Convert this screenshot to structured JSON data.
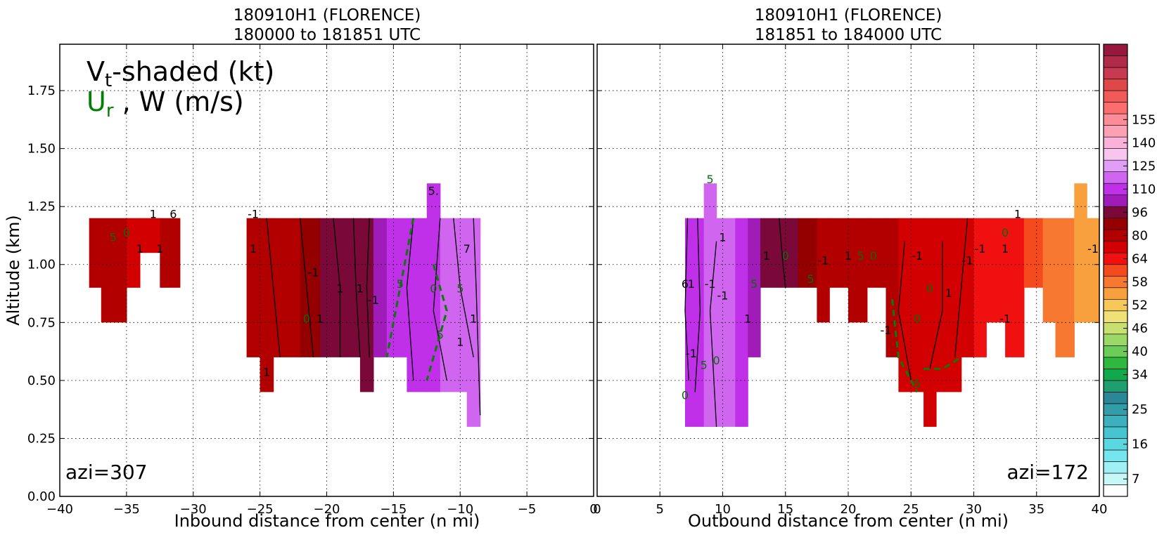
{
  "chart_data": [
    {
      "type": "heatmap",
      "title": [
        "180910H1 (FLORENCE)",
        "180000 to 181851 UTC"
      ],
      "xlabel": "Inbound distance from center (n mi)",
      "ylabel": "Altitude (km)",
      "xlim": [
        -40,
        0
      ],
      "ylim": [
        0.0,
        1.95
      ],
      "xticks": [
        "−40",
        "−35",
        "−30",
        "−25",
        "−20",
        "−15",
        "−10",
        "−5",
        "0"
      ],
      "xtick_values": [
        -40,
        -35,
        -30,
        -25,
        -20,
        -15,
        -10,
        -5,
        0
      ],
      "yticks": [
        "0.00",
        "0.25",
        "0.50",
        "0.75",
        "1.00",
        "1.25",
        "1.50",
        "1.75"
      ],
      "ytick_values": [
        0.0,
        0.25,
        0.5,
        0.75,
        1.0,
        1.25,
        1.5,
        1.75
      ],
      "grid": true,
      "azimuth_label": "azi=307",
      "legend_lines": [
        "V",
        "t",
        "-shaded (kt)",
        "U",
        "r",
        " , W (m/s)"
      ],
      "vt_columns": [
        {
          "x0": -37.8,
          "x1": -36.9,
          "y0": 0.9,
          "y1": 1.2,
          "v": 82
        },
        {
          "x0": -36.9,
          "x1": -35.0,
          "y0": 0.75,
          "y1": 1.2,
          "v": 80
        },
        {
          "x0": -35.0,
          "x1": -34.0,
          "y0": 0.9,
          "y1": 1.2,
          "v": 78
        },
        {
          "x0": -34.0,
          "x1": -32.5,
          "y0": 1.05,
          "y1": 1.2,
          "v": 78
        },
        {
          "x0": -32.5,
          "x1": -31.0,
          "y0": 0.9,
          "y1": 1.2,
          "v": 80
        },
        {
          "x0": -26.0,
          "x1": -25.0,
          "y0": 0.6,
          "y1": 1.2,
          "v": 86
        },
        {
          "x0": -25.0,
          "x1": -24.0,
          "y0": 0.45,
          "y1": 1.2,
          "v": 80
        },
        {
          "x0": -24.0,
          "x1": -22.0,
          "y0": 0.6,
          "y1": 1.2,
          "v": 86
        },
        {
          "x0": -22.0,
          "x1": -20.5,
          "y0": 0.6,
          "y1": 1.2,
          "v": 90
        },
        {
          "x0": -20.5,
          "x1": -18.5,
          "y0": 0.6,
          "y1": 1.2,
          "v": 96
        },
        {
          "x0": -18.5,
          "x1": -17.5,
          "y0": 0.6,
          "y1": 1.2,
          "v": 100
        },
        {
          "x0": -17.5,
          "x1": -16.5,
          "y0": 0.45,
          "y1": 1.2,
          "v": 100
        },
        {
          "x0": -16.5,
          "x1": -15.5,
          "y0": 0.6,
          "y1": 1.2,
          "v": 105
        },
        {
          "x0": -15.5,
          "x1": -14.0,
          "y0": 0.6,
          "y1": 1.2,
          "v": 110
        },
        {
          "x0": -14.0,
          "x1": -12.5,
          "y0": 0.45,
          "y1": 1.2,
          "v": 112
        },
        {
          "x0": -12.5,
          "x1": -11.5,
          "y0": 0.45,
          "y1": 1.35,
          "v": 115
        },
        {
          "x0": -11.5,
          "x1": -9.5,
          "y0": 0.45,
          "y1": 1.2,
          "v": 118
        },
        {
          "x0": -9.5,
          "x1": -8.5,
          "y0": 0.3,
          "y1": 1.2,
          "v": 118
        }
      ],
      "contours_black": [
        [
          [
            -24.5,
            1.2
          ],
          [
            -24.0,
            0.9
          ],
          [
            -23.5,
            0.6
          ]
        ],
        [
          [
            -22.0,
            1.2
          ],
          [
            -21.5,
            0.9
          ],
          [
            -21.0,
            0.6
          ]
        ],
        [
          [
            -19.5,
            1.2
          ],
          [
            -19.0,
            0.9
          ],
          [
            -19.0,
            0.6
          ]
        ],
        [
          [
            -18.0,
            1.2
          ],
          [
            -17.8,
            0.9
          ],
          [
            -17.5,
            0.6
          ]
        ],
        [
          [
            -16.8,
            1.2
          ],
          [
            -17.0,
            0.9
          ],
          [
            -16.8,
            0.6
          ]
        ],
        [
          [
            -13.5,
            1.2
          ],
          [
            -14.0,
            0.9
          ],
          [
            -13.5,
            0.5
          ]
        ],
        [
          [
            -11.5,
            1.2
          ],
          [
            -12.0,
            0.8
          ],
          [
            -11.0,
            0.5
          ]
        ],
        [
          [
            -10.5,
            1.2
          ],
          [
            -10.0,
            0.9
          ],
          [
            -9.0,
            0.6
          ]
        ],
        [
          [
            -9.0,
            1.2
          ],
          [
            -8.8,
            0.9
          ],
          [
            -8.5,
            0.35
          ]
        ]
      ],
      "contours_green_dashed": [
        [
          [
            -13.5,
            1.2
          ],
          [
            -14.5,
            0.9
          ],
          [
            -15.5,
            0.6
          ]
        ],
        [
          [
            -12.0,
            1.0
          ],
          [
            -11.0,
            0.8
          ],
          [
            -12.5,
            0.5
          ]
        ]
      ],
      "contour_labels": [
        {
          "x": -36.0,
          "y": 1.1,
          "t": "5"
        },
        {
          "x": -35.0,
          "y": 1.12,
          "t": "0"
        },
        {
          "x": -34.0,
          "y": 1.05,
          "t": "1"
        },
        {
          "x": -32.5,
          "y": 1.05,
          "t": "1"
        },
        {
          "x": -33.0,
          "y": 1.2,
          "t": "1"
        },
        {
          "x": -31.5,
          "y": 1.2,
          "t": "6"
        },
        {
          "x": -25.5,
          "y": 1.2,
          "t": "-1"
        },
        {
          "x": -25.5,
          "y": 1.05,
          "t": "1"
        },
        {
          "x": -21.0,
          "y": 0.95,
          "t": "-1"
        },
        {
          "x": -21.5,
          "y": 0.75,
          "t": "0"
        },
        {
          "x": -20.5,
          "y": 0.75,
          "t": "1"
        },
        {
          "x": -19.0,
          "y": 0.88,
          "t": "1"
        },
        {
          "x": -17.5,
          "y": 0.88,
          "t": "1"
        },
        {
          "x": -16.5,
          "y": 0.83,
          "t": "-1"
        },
        {
          "x": -24.5,
          "y": 0.52,
          "t": "1"
        },
        {
          "x": -14.5,
          "y": 0.9,
          "t": "5"
        },
        {
          "x": -12.0,
          "y": 0.88,
          "t": "0"
        },
        {
          "x": -10.0,
          "y": 0.88,
          "t": "5"
        },
        {
          "x": -11.5,
          "y": 0.68,
          "t": "5"
        },
        {
          "x": -12.0,
          "y": 1.3,
          "t": "5."
        },
        {
          "x": -9.5,
          "y": 1.05,
          "t": "7"
        },
        {
          "x": -9.0,
          "y": 0.75,
          "t": "1"
        },
        {
          "x": -10.0,
          "y": 0.65,
          "t": "1"
        }
      ]
    },
    {
      "type": "heatmap",
      "title": [
        "180910H1 (FLORENCE)",
        "181851 to 184000 UTC"
      ],
      "xlabel": "Outbound distance from center (n mi)",
      "ylabel": "",
      "xlim": [
        0,
        40
      ],
      "ylim": [
        0.0,
        1.95
      ],
      "xticks": [
        "0",
        "5",
        "10",
        "15",
        "20",
        "25",
        "30",
        "35",
        "40"
      ],
      "xtick_values": [
        0,
        5,
        10,
        15,
        20,
        25,
        30,
        35,
        40
      ],
      "yticks": [],
      "ytick_values": [
        0.0,
        0.25,
        0.5,
        0.75,
        1.0,
        1.25,
        1.5,
        1.75
      ],
      "grid": true,
      "azimuth_label": "azi=172",
      "vt_columns": [
        {
          "x0": 7.0,
          "x1": 8.5,
          "y0": 0.3,
          "y1": 1.2,
          "v": 115
        },
        {
          "x0": 8.5,
          "x1": 9.5,
          "y0": 0.3,
          "y1": 1.35,
          "v": 118
        },
        {
          "x0": 9.5,
          "x1": 11.0,
          "y0": 0.3,
          "y1": 1.2,
          "v": 120
        },
        {
          "x0": 11.0,
          "x1": 12.0,
          "y0": 0.3,
          "y1": 1.2,
          "v": 112
        },
        {
          "x0": 12.0,
          "x1": 13.0,
          "y0": 0.6,
          "y1": 1.2,
          "v": 108
        },
        {
          "x0": 13.0,
          "x1": 14.0,
          "y0": 0.9,
          "y1": 1.2,
          "v": 100
        },
        {
          "x0": 14.0,
          "x1": 16.0,
          "y0": 0.9,
          "y1": 1.2,
          "v": 96
        },
        {
          "x0": 16.0,
          "x1": 17.5,
          "y0": 0.9,
          "y1": 1.2,
          "v": 90
        },
        {
          "x0": 17.5,
          "x1": 18.5,
          "y0": 0.75,
          "y1": 1.2,
          "v": 86
        },
        {
          "x0": 18.5,
          "x1": 20.0,
          "y0": 0.9,
          "y1": 1.2,
          "v": 82
        },
        {
          "x0": 20.0,
          "x1": 21.5,
          "y0": 0.75,
          "y1": 1.2,
          "v": 80
        },
        {
          "x0": 21.5,
          "x1": 23.0,
          "y0": 0.9,
          "y1": 1.2,
          "v": 80
        },
        {
          "x0": 23.0,
          "x1": 24.0,
          "y0": 0.6,
          "y1": 1.2,
          "v": 80
        },
        {
          "x0": 24.0,
          "x1": 26.0,
          "y0": 0.45,
          "y1": 1.2,
          "v": 78
        },
        {
          "x0": 26.0,
          "x1": 27.0,
          "y0": 0.3,
          "y1": 1.2,
          "v": 78
        },
        {
          "x0": 27.0,
          "x1": 29.0,
          "y0": 0.45,
          "y1": 1.2,
          "v": 76
        },
        {
          "x0": 29.0,
          "x1": 30.0,
          "y0": 0.6,
          "y1": 1.2,
          "v": 76
        },
        {
          "x0": 30.0,
          "x1": 31.0,
          "y0": 0.6,
          "y1": 1.2,
          "v": 70
        },
        {
          "x0": 31.0,
          "x1": 32.5,
          "y0": 0.75,
          "y1": 1.2,
          "v": 68
        },
        {
          "x0": 32.5,
          "x1": 34.0,
          "y0": 0.6,
          "y1": 1.2,
          "v": 64
        },
        {
          "x0": 34.0,
          "x1": 35.5,
          "y0": 0.9,
          "y1": 1.2,
          "v": 62
        },
        {
          "x0": 35.5,
          "x1": 36.5,
          "y0": 0.75,
          "y1": 1.2,
          "v": 60
        },
        {
          "x0": 36.5,
          "x1": 38.0,
          "y0": 0.6,
          "y1": 1.2,
          "v": 58
        },
        {
          "x0": 38.0,
          "x1": 39.0,
          "y0": 0.75,
          "y1": 1.35,
          "v": 56
        },
        {
          "x0": 39.0,
          "x1": 40.0,
          "y0": 0.75,
          "y1": 1.2,
          "v": 56
        }
      ],
      "contours_black": [
        [
          [
            7.2,
            1.2
          ],
          [
            7.0,
            0.8
          ],
          [
            7.3,
            0.5
          ]
        ],
        [
          [
            8.0,
            1.2
          ],
          [
            8.2,
            0.8
          ],
          [
            7.8,
            0.45
          ]
        ],
        [
          [
            9.5,
            1.1
          ],
          [
            9.0,
            0.8
          ],
          [
            9.5,
            0.3
          ]
        ],
        [
          [
            14.5,
            1.2
          ],
          [
            14.8,
            1.0
          ],
          [
            15.0,
            0.9
          ]
        ],
        [
          [
            24.5,
            1.1
          ],
          [
            24.0,
            0.8
          ],
          [
            25.0,
            0.5
          ]
        ],
        [
          [
            27.5,
            1.1
          ],
          [
            27.5,
            0.8
          ],
          [
            26.5,
            0.55
          ]
        ],
        [
          [
            29.5,
            1.2
          ],
          [
            29.0,
            0.9
          ],
          [
            28.5,
            0.6
          ]
        ]
      ],
      "contours_green_dashed": [
        [
          [
            23.5,
            0.85
          ],
          [
            24.0,
            0.6
          ],
          [
            25.5,
            0.45
          ]
        ],
        [
          [
            26.0,
            0.55
          ],
          [
            27.5,
            0.55
          ],
          [
            29.0,
            0.6
          ]
        ]
      ],
      "contour_labels": [
        {
          "x": 9.0,
          "y": 1.35,
          "t": "5"
        },
        {
          "x": 7.0,
          "y": 0.9,
          "t": "6"
        },
        {
          "x": 7.5,
          "y": 0.9,
          "t": "1"
        },
        {
          "x": 9.0,
          "y": 0.9,
          "t": "-1"
        },
        {
          "x": 10.0,
          "y": 0.85,
          "t": "-1"
        },
        {
          "x": 10.0,
          "y": 1.1,
          "t": "1"
        },
        {
          "x": 12.0,
          "y": 0.75,
          "t": "1"
        },
        {
          "x": 12.5,
          "y": 0.9,
          "t": "5"
        },
        {
          "x": 7.5,
          "y": 0.6,
          "t": "-1"
        },
        {
          "x": 8.5,
          "y": 0.55,
          "t": "5"
        },
        {
          "x": 9.5,
          "y": 0.57,
          "t": "0"
        },
        {
          "x": 7.0,
          "y": 0.42,
          "t": "0"
        },
        {
          "x": 13.5,
          "y": 1.02,
          "t": "1"
        },
        {
          "x": 15.0,
          "y": 1.02,
          "t": "0"
        },
        {
          "x": 18.0,
          "y": 1.0,
          "t": "-1"
        },
        {
          "x": 17.0,
          "y": 0.92,
          "t": "5"
        },
        {
          "x": 20.0,
          "y": 1.02,
          "t": "1"
        },
        {
          "x": 21.0,
          "y": 1.02,
          "t": "5"
        },
        {
          "x": 22.0,
          "y": 1.02,
          "t": "0"
        },
        {
          "x": 25.5,
          "y": 1.02,
          "t": "-1"
        },
        {
          "x": 23.0,
          "y": 0.7,
          "t": "-1"
        },
        {
          "x": 25.5,
          "y": 0.75,
          "t": "0"
        },
        {
          "x": 26.5,
          "y": 0.88,
          "t": "0"
        },
        {
          "x": 28.0,
          "y": 0.86,
          "t": "1"
        },
        {
          "x": 29.5,
          "y": 1.0,
          "t": "-1"
        },
        {
          "x": 30.5,
          "y": 1.05,
          "t": "-1"
        },
        {
          "x": 32.5,
          "y": 1.05,
          "t": "1"
        },
        {
          "x": 32.5,
          "y": 1.12,
          "t": "0"
        },
        {
          "x": 33.5,
          "y": 1.2,
          "t": "1"
        },
        {
          "x": 32.5,
          "y": 0.75,
          "t": "-1"
        },
        {
          "x": 39.5,
          "y": 1.05,
          "t": "-1"
        },
        {
          "x": 25.5,
          "y": 0.47,
          "t": "5"
        }
      ]
    }
  ],
  "colorbar": {
    "tick_labels": [
      "7",
      "16",
      "25",
      "34",
      "40",
      "46",
      "52",
      "58",
      "64",
      "80",
      "96",
      "110",
      "125",
      "140",
      "155"
    ],
    "tick_values": [
      7,
      16,
      25,
      34,
      40,
      46,
      52,
      58,
      64,
      80,
      96,
      110,
      125,
      140,
      155
    ],
    "levels": [
      4,
      7,
      10,
      13,
      16,
      19,
      22,
      25,
      28,
      31,
      34,
      37,
      40,
      43,
      46,
      49,
      52,
      55,
      58,
      61,
      64,
      72,
      80,
      88,
      96,
      103,
      110,
      118,
      125,
      133,
      140,
      148,
      155,
      162
    ],
    "colors": [
      "#ffffff",
      "#c6f8fa",
      "#9ef0f4",
      "#76e6ee",
      "#5ad8e2",
      "#48c4d0",
      "#3cb0bc",
      "#329ca8",
      "#2a8896",
      "#1f9f6e",
      "#12a84c",
      "#2eb83e",
      "#6ccc58",
      "#9cd868",
      "#c8e070",
      "#f0e078",
      "#f6c85a",
      "#f8a03e",
      "#f77830",
      "#f44a1e",
      "#f01010",
      "#d20000",
      "#b20000",
      "#940000",
      "#7a0838",
      "#a01cb8",
      "#c030e8",
      "#d066f0",
      "#e09ef6",
      "#f6c6ee",
      "#fcb2d8",
      "#fca0b4",
      "#fc8c98",
      "#fc6e6e",
      "#f25a5a",
      "#e04848",
      "#c83a52",
      "#b02a4a",
      "#96183c"
    ]
  }
}
